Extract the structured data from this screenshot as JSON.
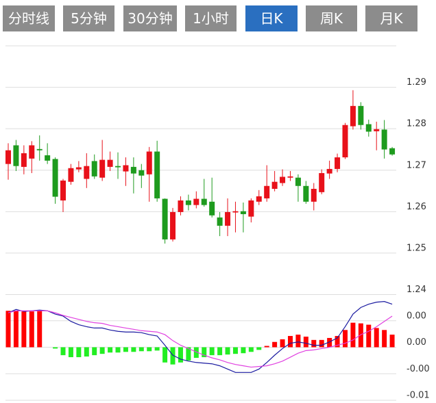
{
  "tabs": {
    "items": [
      "分时线",
      "5分钟",
      "30分钟",
      "1小时",
      "日K",
      "周K",
      "月K"
    ],
    "active": 4
  },
  "chart_data": [
    {
      "type": "candlestick",
      "open": [
        1.2715,
        1.276,
        1.2708,
        1.2728,
        1.2751,
        1.2736,
        1.2727,
        1.2627,
        1.2672,
        1.2702,
        1.2679,
        1.2722,
        1.2682,
        1.2708,
        1.271,
        1.2697,
        1.2708,
        1.27,
        1.269,
        1.2745,
        1.2631,
        1.2533,
        1.2599,
        1.2627,
        1.2616,
        1.2631,
        1.2624,
        1.2586,
        1.2566,
        1.2598,
        1.2601,
        1.2588,
        1.2624,
        1.2632,
        1.2655,
        1.2669,
        1.2682,
        1.2682,
        1.2662,
        1.2624,
        1.2647,
        1.2692,
        1.2703,
        1.2731,
        1.2806,
        1.2855,
        1.2811,
        1.2794,
        1.2798,
        1.2753
      ],
      "close": [
        1.2748,
        1.271,
        1.2741,
        1.276,
        1.2748,
        1.2723,
        1.2636,
        1.2675,
        1.2705,
        1.2707,
        1.271,
        1.2685,
        1.2725,
        1.2725,
        1.2707,
        1.2712,
        1.2692,
        1.2687,
        1.2745,
        1.2632,
        1.2533,
        1.2599,
        1.2627,
        1.2616,
        1.2631,
        1.2616,
        1.2591,
        1.2566,
        1.2599,
        1.2601,
        1.2594,
        1.2627,
        1.2637,
        1.2662,
        1.2672,
        1.2684,
        1.2685,
        1.2662,
        1.2624,
        1.2655,
        1.2693,
        1.2703,
        1.2731,
        1.2809,
        1.2855,
        1.2809,
        1.2793,
        1.2799,
        1.275,
        1.2738
      ],
      "high": [
        1.2765,
        1.2773,
        1.276,
        1.277,
        1.2784,
        1.2765,
        1.2731,
        1.2679,
        1.2715,
        1.2722,
        1.2741,
        1.2738,
        1.2773,
        1.2745,
        1.2743,
        1.2731,
        1.2731,
        1.2715,
        1.2756,
        1.2771,
        1.2632,
        1.2609,
        1.2637,
        1.2641,
        1.2649,
        1.2679,
        1.2682,
        1.2599,
        1.2632,
        1.2624,
        1.2622,
        1.2632,
        1.2652,
        1.2712,
        1.2698,
        1.2702,
        1.2698,
        1.269,
        1.2674,
        1.2669,
        1.2702,
        1.2723,
        1.274,
        1.2814,
        1.2893,
        1.2864,
        1.2822,
        1.2817,
        1.2821,
        1.2756
      ],
      "low": [
        1.2677,
        1.2698,
        1.269,
        1.2693,
        1.2723,
        1.2715,
        1.2619,
        1.2599,
        1.2665,
        1.2695,
        1.2657,
        1.2679,
        1.2674,
        1.2698,
        1.2679,
        1.2662,
        1.2644,
        1.2657,
        1.2624,
        1.2624,
        1.2523,
        1.2528,
        1.2591,
        1.2603,
        1.2608,
        1.2612,
        1.2586,
        1.2541,
        1.2541,
        1.255,
        1.255,
        1.2574,
        1.2616,
        1.2624,
        1.2649,
        1.2662,
        1.2674,
        1.2624,
        1.2619,
        1.2603,
        1.2642,
        1.2679,
        1.2695,
        1.2727,
        1.2798,
        1.2798,
        1.2781,
        1.2748,
        1.2728,
        1.2735
      ],
      "up_color": "#e8111a",
      "down_color": "#1e9b1e",
      "ylim": [
        1.24,
        1.3
      ],
      "yticks": [
        1.24,
        1.25,
        1.26,
        1.27,
        1.28,
        1.29
      ],
      "grid": true
    },
    {
      "type": "macd",
      "bars": {
        "values": [
          0.0055,
          0.0055,
          0.0054,
          0.0054,
          0.0055,
          0,
          -0.0002,
          -0.0012,
          -0.0015,
          -0.0015,
          -0.0014,
          -0.0012,
          -0.001,
          -0.0008,
          -0.0008,
          -0.0007,
          -0.0007,
          -0.0006,
          -0.0006,
          -0.0005,
          -0.0023,
          -0.0026,
          -0.0023,
          -0.002,
          -0.0016,
          -0.0015,
          -0.0012,
          -0.0012,
          -0.0011,
          -0.001,
          -0.0009,
          -0.0007,
          -0.0004,
          0.0002,
          0.0008,
          0.0012,
          0.0017,
          0.0019,
          0.0016,
          0.0011,
          0.0011,
          0.0014,
          0.0017,
          0.0026,
          0.0037,
          0.0036,
          0.0034,
          0.0029,
          0.0026,
          0.0019
        ],
        "up_color": "#ff0000",
        "down_color": "#22ee22"
      },
      "series": [
        {
          "color": "#1a1aa0",
          "values": [
            0.0052,
            0.0057,
            0.0054,
            0.0055,
            0.0056,
            0.0055,
            0.005,
            0.0047,
            0.0039,
            0.0034,
            0.0031,
            0.0029,
            0.0029,
            0.0026,
            0.0024,
            0.0023,
            0.0023,
            0.0022,
            0.0019,
            0.0017,
            0.0003,
            -0.0012,
            -0.0018,
            -0.0021,
            -0.0023,
            -0.0024,
            -0.0025,
            -0.0028,
            -0.0033,
            -0.0038,
            -0.0038,
            -0.0038,
            -0.0033,
            -0.0023,
            -0.0012,
            -0.0002,
            0.0006,
            0.0008,
            0.0006,
            0.0003,
            0.0003,
            0.0008,
            0.0014,
            0.0031,
            0.005,
            0.006,
            0.0065,
            0.0068,
            0.0069,
            0.0065
          ]
        },
        {
          "color": "#e040e0",
          "values": [
            0.0052,
            0.0055,
            0.0055,
            0.0055,
            0.0055,
            0.0055,
            0.0052,
            0.0048,
            0.0045,
            0.0042,
            0.0039,
            0.0037,
            0.0036,
            0.0033,
            0.0031,
            0.0029,
            0.0027,
            0.0025,
            0.0024,
            0.0023,
            0.0019,
            0.001,
            0.0003,
            -0.0002,
            -0.0007,
            -0.0012,
            -0.0016,
            -0.0019,
            -0.0023,
            -0.0026,
            -0.0028,
            -0.003,
            -0.0029,
            -0.0028,
            -0.0025,
            -0.0021,
            -0.0015,
            -0.0009,
            -0.0005,
            -0.0004,
            -0.0002,
            0,
            0.0003,
            0.0006,
            0.0011,
            0.0019,
            0.0024,
            0.0031,
            0.0039,
            0.0047
          ]
        }
      ],
      "ylim": [
        -0.008,
        0.008
      ],
      "yticks": [
        {
          "value": 0.004,
          "label": "0.00"
        },
        {
          "value": 0,
          "label": "0.00"
        },
        {
          "value": -0.004,
          "label": "-0.00"
        },
        {
          "value": -0.008,
          "label": "-0.01"
        }
      ],
      "grid": true
    }
  ]
}
